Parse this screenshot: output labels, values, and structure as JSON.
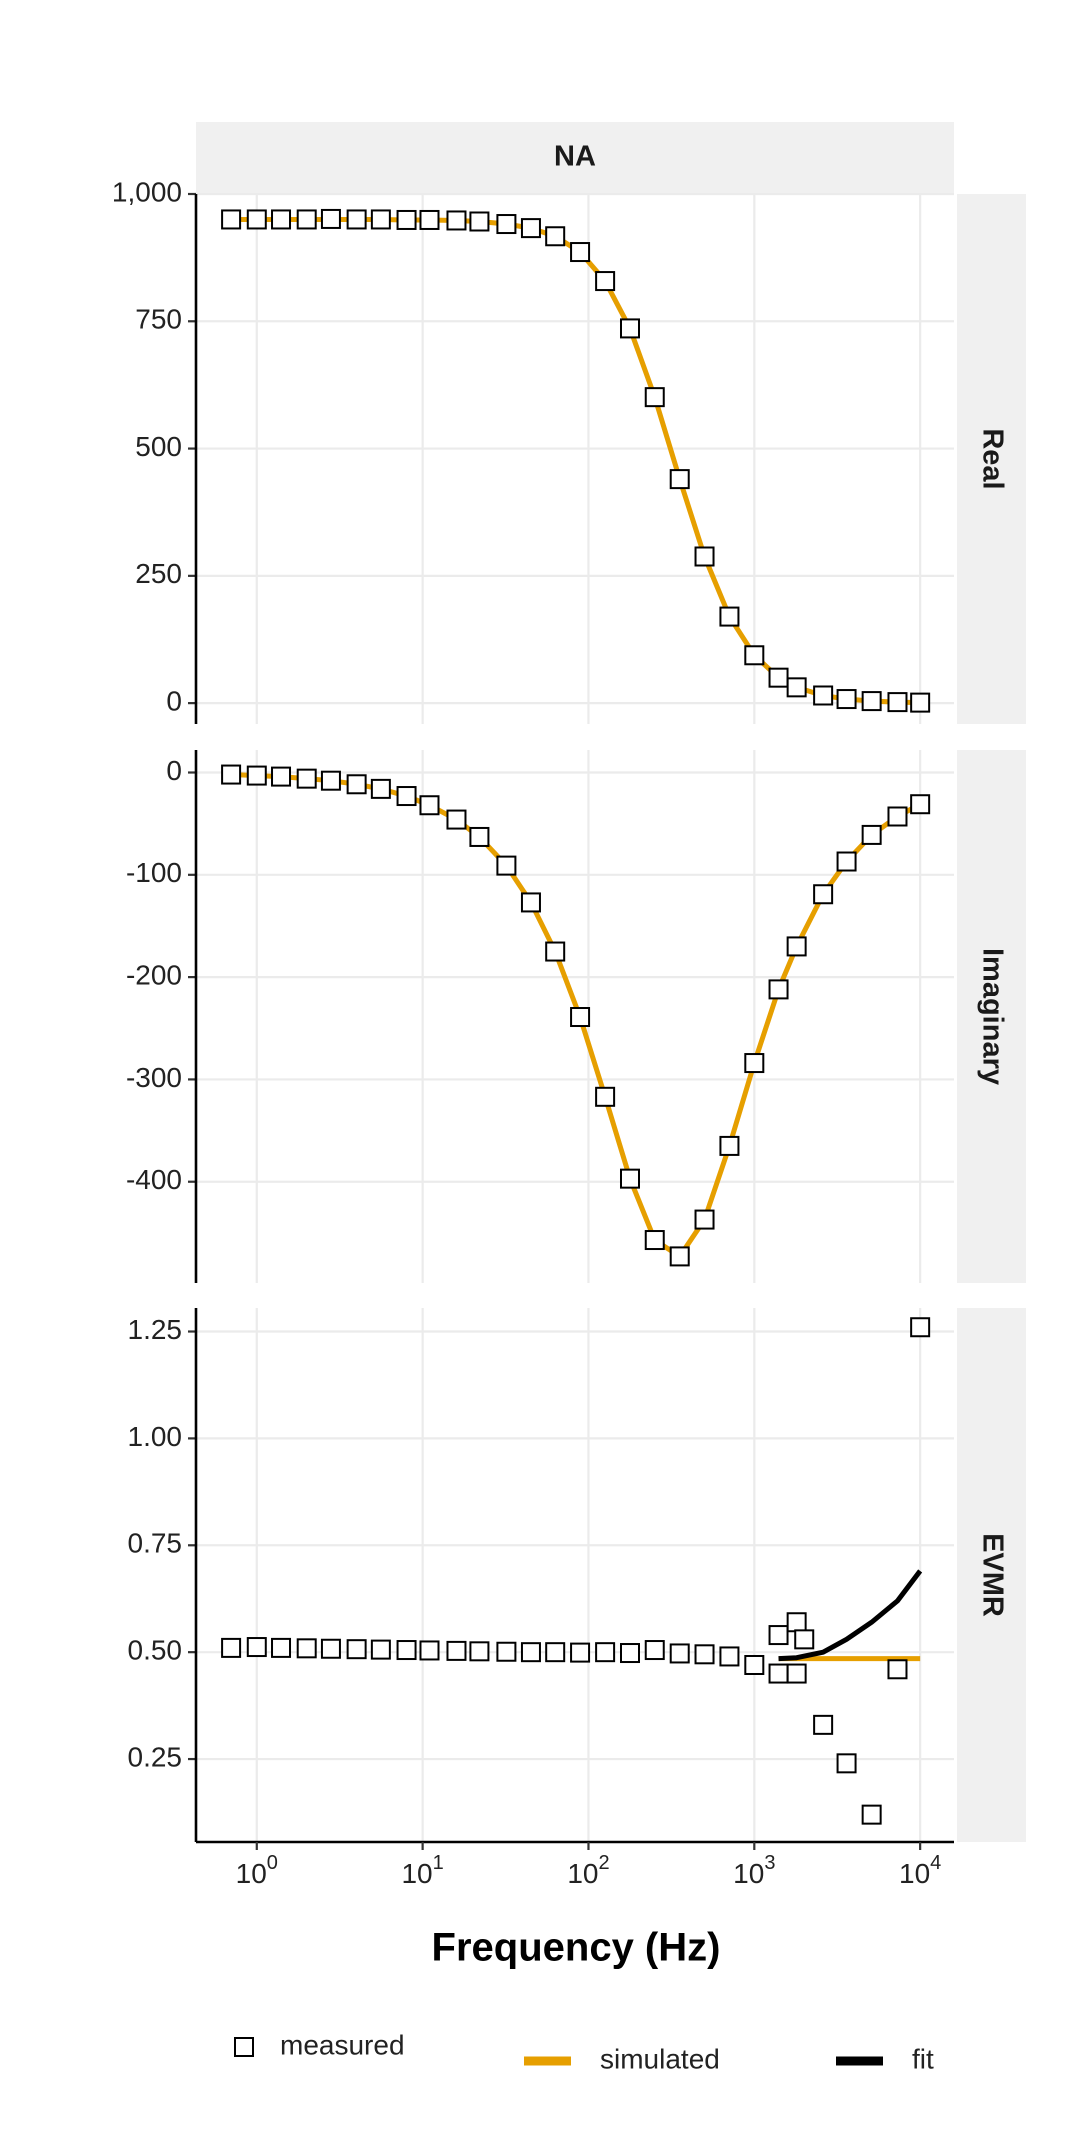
{
  "chart_data": {
    "type": "scatter",
    "title": "NA",
    "xlabel": "Frequency (Hz)",
    "xscale": "log",
    "xlim": [
      0.43,
      16000
    ],
    "xticks": [
      {
        "value": 1,
        "label": "10^0"
      },
      {
        "value": 10,
        "label": "10^1"
      },
      {
        "value": 100,
        "label": "10^2"
      },
      {
        "value": 1000,
        "label": "10^3"
      },
      {
        "value": 10000,
        "label": "10^4"
      }
    ],
    "grid": true,
    "legend_position": "bottom",
    "legend": [
      {
        "name": "measured",
        "color": "#000000",
        "mark": "square"
      },
      {
        "name": "simulated",
        "color": "#E69F00",
        "mark": "line"
      },
      {
        "name": "fit",
        "color": "#000000",
        "mark": "line"
      }
    ],
    "panels": [
      {
        "label": "Real",
        "ylim": [
          -41,
          1000
        ],
        "yticks": [
          0,
          250,
          500,
          750,
          {
            "value": 1000,
            "label": "1,000"
          }
        ],
        "series": [
          {
            "name": "simulated",
            "x": [
              0.7,
              1,
              1.4,
              2,
              2.8,
              4,
              5.6,
              8,
              11,
              16,
              22,
              32,
              45,
              63,
              89,
              126,
              178,
              251,
              355,
              501,
              708,
              1000,
              1400,
              1800,
              2600,
              3600,
              5100,
              7300,
              10000
            ],
            "values": [
              950,
              950,
              950,
              950,
              950,
              950,
              950,
              949,
              949,
              948,
              946,
              941,
              933,
              917,
              886,
              829,
              736,
              601,
              440,
              288,
              170,
              94,
              50,
              31,
              15,
              8,
              4,
              2,
              1
            ]
          },
          {
            "name": "measured",
            "x": [
              0.7,
              1,
              1.4,
              2,
              2.8,
              4,
              5.6,
              8,
              11,
              16,
              22,
              32,
              45,
              63,
              89,
              126,
              178,
              251,
              355,
              501,
              708,
              1000,
              1400,
              1800,
              2600,
              3600,
              5100,
              7300,
              10000
            ],
            "values": [
              950,
              950,
              950,
              950,
              951,
              950,
              950,
              949,
              949,
              948,
              946,
              941,
              933,
              917,
              886,
              829,
              736,
              601,
              440,
              288,
              170,
              94,
              50,
              31,
              15,
              8,
              4,
              2,
              1
            ]
          }
        ]
      },
      {
        "label": "Imaginary",
        "ylim": [
          -499,
          22
        ],
        "yticks": [
          -400,
          -300,
          -200,
          -100,
          0
        ],
        "series": [
          {
            "name": "simulated",
            "x": [
              0.7,
              1,
              1.4,
              2,
              2.8,
              4,
              5.6,
              8,
              11,
              16,
              22,
              32,
              45,
              63,
              89,
              126,
              178,
              251,
              355,
              501,
              708,
              1000,
              1400,
              1800,
              2600,
              3600,
              5100,
              7300,
              10000
            ],
            "values": [
              -2,
              -3,
              -4,
              -6,
              -8,
              -11.5,
              -16,
              -23,
              -32,
              -46,
              -63,
              -91,
              -127,
              -175,
              -239,
              -317,
              -397,
              -457,
              -473,
              -437,
              -365,
              -284,
              -212,
              -170,
              -119,
              -87,
              -61,
              -43,
              -31
            ]
          },
          {
            "name": "measured",
            "x": [
              0.7,
              1,
              1.4,
              2,
              2.8,
              4,
              5.6,
              8,
              11,
              16,
              22,
              32,
              45,
              63,
              89,
              126,
              178,
              251,
              355,
              501,
              708,
              1000,
              1400,
              1800,
              2600,
              3600,
              5100,
              7300,
              10000
            ],
            "values": [
              -2,
              -3,
              -4,
              -6,
              -8,
              -11.5,
              -16,
              -23,
              -32,
              -46,
              -63,
              -91,
              -127,
              -175,
              -239,
              -317,
              -397,
              -457,
              -473,
              -437,
              -365,
              -284,
              -212,
              -170,
              -119,
              -87,
              -61,
              -43,
              -31
            ]
          }
        ]
      },
      {
        "label": "EVMR",
        "ylim": [
          0.056,
          1.305
        ],
        "yticks": [
          0.25,
          {
            "value": 0.5,
            "label": "0.50"
          },
          0.75,
          {
            "value": 1,
            "label": "1.00"
          },
          1.25
        ],
        "series": [
          {
            "name": "simulated",
            "x": [
              1400,
              10000
            ],
            "values": [
              0.485,
              0.485
            ]
          },
          {
            "name": "fit",
            "x": [
              1400,
              1800,
              2600,
              3600,
              5100,
              7300,
              10000
            ],
            "values": [
              0.485,
              0.487,
              0.5,
              0.53,
              0.57,
              0.62,
              0.69
            ]
          },
          {
            "name": "measured",
            "x": [
              0.7,
              1,
              1.4,
              2,
              2.8,
              4,
              5.6,
              8,
              11,
              16,
              22,
              32,
              45,
              63,
              89,
              126,
              178,
              251,
              355,
              501,
              708,
              1000,
              1400,
              1400,
              1800,
              1800,
              2000,
              2600,
              3600,
              5100,
              7300,
              10000
            ],
            "values": [
              0.51,
              0.512,
              0.51,
              0.509,
              0.508,
              0.507,
              0.506,
              0.505,
              0.504,
              0.503,
              0.502,
              0.501,
              0.5,
              0.5,
              0.499,
              0.5,
              0.498,
              0.505,
              0.497,
              0.495,
              0.49,
              0.47,
              0.54,
              0.45,
              0.57,
              0.45,
              0.53,
              0.33,
              0.24,
              0.12,
              0.46,
              1.26
            ]
          }
        ]
      }
    ]
  }
}
